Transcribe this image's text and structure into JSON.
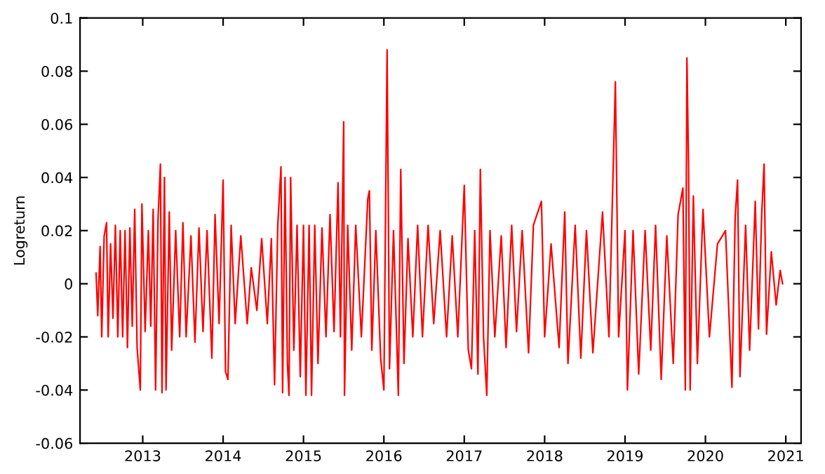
{
  "chart_data": {
    "type": "line",
    "ylabel": "Logreturn",
    "xlim": [
      2012.22,
      2021.19
    ],
    "xticks": [
      2013,
      2014,
      2015,
      2016,
      2017,
      2018,
      2019,
      2020,
      2021
    ],
    "ylim": [
      -0.06,
      0.1
    ],
    "yticks": [
      -0.06,
      -0.04,
      -0.02,
      0,
      0.02,
      0.04,
      0.06,
      0.08,
      0.1
    ],
    "grid": false,
    "legend": false,
    "marker": "none",
    "line_style": "solid",
    "series": [
      {
        "color": "#ff0000",
        "x": [
          2012.42,
          2012.44,
          2012.47,
          2012.49,
          2012.52,
          2012.55,
          2012.57,
          2012.6,
          2012.63,
          2012.66,
          2012.69,
          2012.72,
          2012.75,
          2012.78,
          2012.81,
          2012.84,
          2012.87,
          2012.9,
          2012.93,
          2012.97,
          2012.99,
          2013.03,
          2013.07,
          2013.1,
          2013.13,
          2013.16,
          2013.19,
          2013.22,
          2013.24,
          2013.27,
          2013.29,
          2013.33,
          2013.36,
          2013.41,
          2013.46,
          2013.5,
          2013.54,
          2013.6,
          2013.65,
          2013.7,
          2013.75,
          2013.8,
          2013.86,
          2013.9,
          2013.95,
          2014.0,
          2014.03,
          2014.06,
          2014.1,
          2014.15,
          2014.22,
          2014.3,
          2014.35,
          2014.42,
          2014.48,
          2014.55,
          2014.6,
          2014.64,
          2014.68,
          2014.72,
          2014.74,
          2014.77,
          2014.8,
          2014.82,
          2014.84,
          2014.88,
          2014.92,
          2014.96,
          2015.0,
          2015.03,
          2015.07,
          2015.1,
          2015.14,
          2015.18,
          2015.23,
          2015.28,
          2015.33,
          2015.38,
          2015.43,
          2015.46,
          2015.5,
          2015.51,
          2015.55,
          2015.6,
          2015.65,
          2015.72,
          2015.8,
          2015.82,
          2015.85,
          2015.9,
          2015.96,
          2016.0,
          2016.04,
          2016.07,
          2016.12,
          2016.18,
          2016.21,
          2016.25,
          2016.3,
          2016.36,
          2016.42,
          2016.48,
          2016.55,
          2016.62,
          2016.7,
          2016.78,
          2016.85,
          2016.92,
          2017.0,
          2017.05,
          2017.09,
          2017.13,
          2017.17,
          2017.2,
          2017.24,
          2017.28,
          2017.32,
          2017.38,
          2017.46,
          2017.52,
          2017.59,
          2017.65,
          2017.72,
          2017.8,
          2017.86,
          2017.96,
          2018.0,
          2018.08,
          2018.18,
          2018.25,
          2018.29,
          2018.38,
          2018.45,
          2018.52,
          2018.6,
          2018.72,
          2018.8,
          2018.88,
          2018.92,
          2019.0,
          2019.03,
          2019.1,
          2019.17,
          2019.25,
          2019.32,
          2019.38,
          2019.45,
          2019.52,
          2019.6,
          2019.66,
          2019.72,
          2019.75,
          2019.77,
          2019.79,
          2019.81,
          2019.85,
          2019.9,
          2019.97,
          2020.05,
          2020.15,
          2020.25,
          2020.33,
          2020.37,
          2020.4,
          2020.43,
          2020.5,
          2020.55,
          2020.62,
          2020.66,
          2020.7,
          2020.73,
          2020.76,
          2020.82,
          2020.88,
          2020.93,
          2020.96
        ],
        "values": [
          0.004,
          -0.012,
          0.014,
          -0.02,
          0.018,
          0.023,
          -0.02,
          0.015,
          -0.013,
          0.022,
          -0.02,
          0.02,
          -0.02,
          0.02,
          -0.024,
          0.021,
          -0.016,
          0.028,
          -0.024,
          -0.04,
          0.03,
          -0.018,
          0.02,
          -0.016,
          0.028,
          -0.04,
          0.024,
          0.045,
          -0.041,
          0.04,
          -0.04,
          0.027,
          -0.025,
          0.02,
          -0.02,
          0.023,
          -0.02,
          0.018,
          -0.022,
          0.021,
          -0.018,
          0.02,
          -0.028,
          0.026,
          -0.015,
          0.039,
          -0.033,
          -0.036,
          0.022,
          -0.015,
          0.018,
          -0.015,
          0.006,
          -0.01,
          0.017,
          -0.015,
          0.017,
          -0.038,
          0.022,
          0.044,
          -0.041,
          0.04,
          -0.03,
          -0.042,
          0.04,
          -0.025,
          0.022,
          -0.035,
          0.022,
          -0.042,
          0.022,
          -0.042,
          0.022,
          -0.03,
          0.021,
          -0.02,
          0.026,
          -0.018,
          0.038,
          -0.02,
          0.061,
          -0.042,
          0.022,
          -0.025,
          0.022,
          -0.02,
          0.032,
          0.035,
          -0.025,
          0.02,
          -0.028,
          -0.04,
          0.088,
          -0.032,
          0.02,
          -0.042,
          0.043,
          -0.03,
          0.017,
          -0.02,
          0.022,
          -0.02,
          0.022,
          -0.015,
          0.02,
          -0.02,
          0.018,
          -0.02,
          0.037,
          -0.025,
          -0.032,
          0.02,
          -0.034,
          0.043,
          -0.02,
          -0.042,
          0.02,
          -0.02,
          0.018,
          -0.024,
          0.022,
          -0.018,
          0.02,
          -0.026,
          0.022,
          0.031,
          -0.02,
          0.015,
          -0.024,
          0.027,
          -0.03,
          0.022,
          -0.028,
          0.02,
          -0.026,
          0.027,
          -0.02,
          0.076,
          -0.02,
          0.02,
          -0.04,
          0.02,
          -0.034,
          0.02,
          -0.025,
          0.022,
          -0.036,
          0.018,
          -0.03,
          0.026,
          0.036,
          -0.04,
          0.085,
          0.045,
          -0.04,
          0.033,
          -0.03,
          0.028,
          -0.02,
          0.015,
          0.02,
          -0.039,
          0.025,
          0.039,
          -0.035,
          0.022,
          -0.025,
          0.031,
          -0.017,
          0.026,
          0.045,
          -0.019,
          0.012,
          -0.008,
          0.005,
          0.0
        ]
      }
    ]
  }
}
